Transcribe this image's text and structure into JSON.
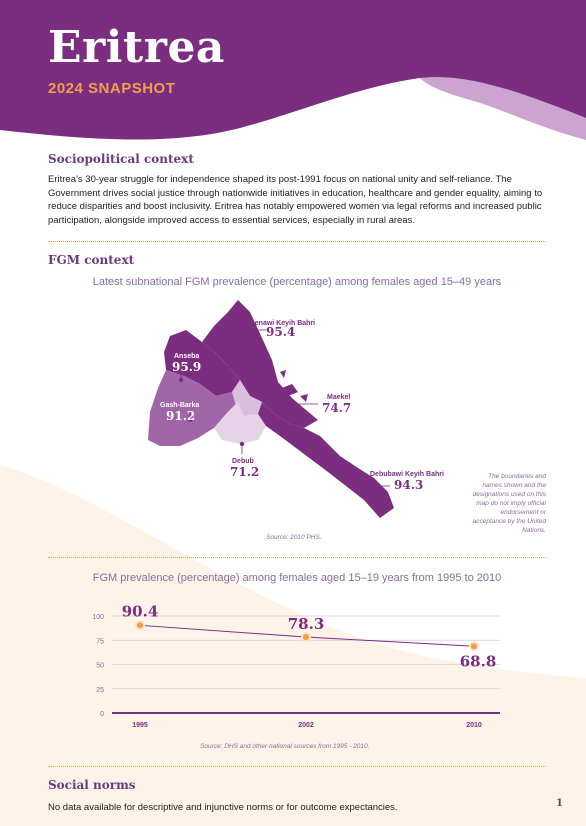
{
  "header": {
    "title": "Eritrea",
    "subtitle": "2024 SNAPSHOT"
  },
  "sociopolitical": {
    "heading": "Sociopolitical context",
    "text": "Eritrea’s 30-year struggle for independence shaped its post-1991 focus on national unity and self-reliance. The Government drives social justice through nationwide initiatives in education, healthcare and gender equality, aiming to reduce disparities and boost inclusivity. Eritrea has notably empowered women via legal reforms and increased public participation, alongside improved access to essential services, especially in rural areas."
  },
  "fgm": {
    "heading": "FGM context",
    "map": {
      "title": "Latest subnational FGM prevalence (percentage) among females aged 15–49 years",
      "regions": [
        {
          "name": "Semenawi Keyih Bahri",
          "value": "95.4"
        },
        {
          "name": "Anseba",
          "value": "95.9"
        },
        {
          "name": "Gash-Barka",
          "value": "91.2"
        },
        {
          "name": "Maekel",
          "value": "74.7"
        },
        {
          "name": "Debub",
          "value": "71.2"
        },
        {
          "name": "Debubawi Keyih Bahri",
          "value": "94.3"
        }
      ],
      "source": "Source: 2010 PHS.",
      "disclaimer": "The boundaries and names shown and the designations used on this map do not imply official endorsement or acceptance by the United Nations."
    }
  },
  "chart_data": {
    "type": "line",
    "title": "FGM prevalence (percentage) among females aged 15–19 years from 1995 to 2010",
    "categories": [
      "1995",
      "2002",
      "2010"
    ],
    "series": [
      {
        "values": [
          90.4,
          78.3,
          68.8
        ]
      }
    ],
    "data_labels": [
      "90.4",
      "78.3",
      "68.8"
    ],
    "y_ticks": [
      0,
      25,
      50,
      75,
      100
    ],
    "ylim": [
      0,
      100
    ],
    "grid": true,
    "source": "Source: DHS and other national sources from 1995 - 2010."
  },
  "social_norms": {
    "heading": "Social norms",
    "text": "No data available for descriptive and injunctive norms or for outcome expectancies."
  },
  "page_number": "1",
  "colors": {
    "purple_dark": "#7b2d7f",
    "purple_mid": "#9b5aa5",
    "purple_light": "#e6d3e8",
    "orange": "#f0a04b",
    "cream": "#fdf3e8",
    "text_muted": "#8a6d9a"
  }
}
